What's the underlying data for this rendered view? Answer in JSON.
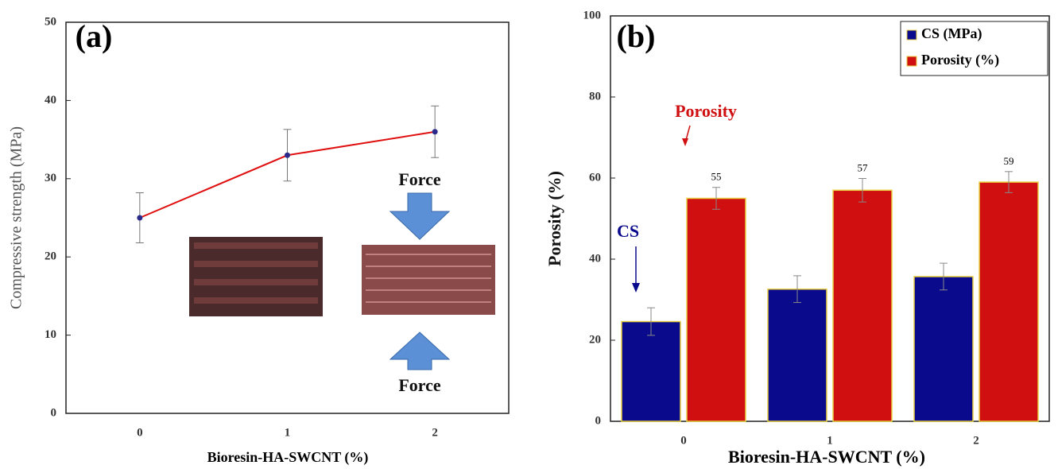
{
  "chart_data": [
    {
      "type": "line",
      "panel_label": "(a)",
      "x_label": "Bioresin-HA-SWCNT (%)",
      "y_label": "Compressive strength (MPa)",
      "categories": [
        "0",
        "1",
        "2"
      ],
      "values": [
        25,
        33,
        36
      ],
      "errors": [
        3.2,
        3.3,
        3.3
      ],
      "color": "#e01010",
      "marker_color": "#2a2a8a",
      "ylim": [
        0,
        50
      ],
      "yticks": [
        0,
        10,
        20,
        30,
        40,
        50
      ],
      "annotations": [
        "Force",
        "Force"
      ]
    },
    {
      "type": "bar",
      "panel_label": "(b)",
      "x_label": "Bioresin-HA-SWCNT (%)",
      "y_label": "Porosity  (%)",
      "categories": [
        "0",
        "1",
        "2"
      ],
      "series": [
        {
          "name": "CS (MPa)",
          "color": "#0a0a8c",
          "values": [
            24.6,
            32.6,
            35.7
          ],
          "errors": [
            3.4,
            3.3,
            3.3
          ]
        },
        {
          "name": "Porosity (%)",
          "color": "#d01010",
          "values": [
            55,
            57,
            59
          ],
          "errors": [
            2.7,
            2.9,
            2.6
          ]
        }
      ],
      "ylim": [
        0,
        100
      ],
      "yticks": [
        0,
        20,
        40,
        60,
        80,
        100
      ],
      "legend": "upper right",
      "annotations": [
        "Porosity",
        "CS"
      ]
    }
  ]
}
